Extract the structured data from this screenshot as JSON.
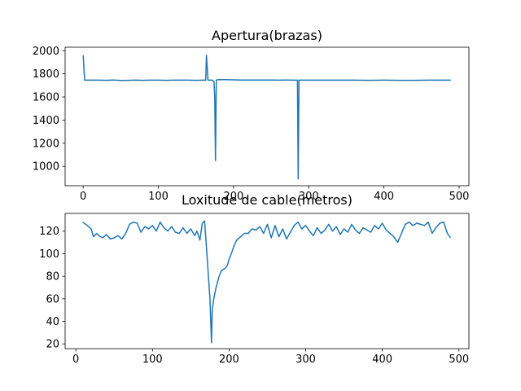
{
  "chart_data": [
    {
      "type": "line",
      "title": "Apertura(brazas)",
      "xlabel": "",
      "ylabel": "",
      "xlim": [
        -24,
        513
      ],
      "ylim": [
        832,
        2030
      ],
      "x_ticks": [
        0,
        100,
        200,
        300,
        400,
        500
      ],
      "y_ticks": [
        1000,
        1200,
        1400,
        1600,
        1800,
        2000
      ],
      "grid": false,
      "color": "#1f77b4",
      "series": [
        {
          "x": [
            0,
            2,
            10,
            20,
            30,
            40,
            50,
            60,
            70,
            80,
            90,
            100,
            110,
            120,
            130,
            140,
            150,
            160,
            163,
            164,
            166,
            168,
            172,
            174,
            175,
            176,
            177,
            180,
            190,
            200,
            210,
            220,
            230,
            240,
            250,
            260,
            270,
            280,
            284,
            285,
            286,
            287,
            288,
            290,
            300,
            320,
            340,
            360,
            380,
            400,
            420,
            440,
            460,
            480,
            489
          ],
          "y": [
            1960,
            1745,
            1745,
            1745,
            1744,
            1746,
            1743,
            1744,
            1745,
            1744,
            1745,
            1745,
            1744,
            1745,
            1745,
            1745,
            1744,
            1745,
            1745,
            1960,
            1745,
            1745,
            1745,
            1730,
            1600,
            1050,
            1745,
            1750,
            1750,
            1748,
            1747,
            1746,
            1746,
            1746,
            1746,
            1745,
            1746,
            1745,
            1745,
            1745,
            890,
            1745,
            1745,
            1745,
            1745,
            1745,
            1745,
            1745,
            1744,
            1745,
            1744,
            1744,
            1745,
            1745,
            1745
          ]
        }
      ]
    },
    {
      "type": "line",
      "title": "Loxitude de cable(metros)",
      "xlabel": "",
      "ylabel": "",
      "xlim": [
        -14,
        513
      ],
      "ylim": [
        15.8,
        135.7
      ],
      "x_ticks": [
        0,
        100,
        200,
        300,
        400,
        500
      ],
      "y_ticks": [
        20,
        40,
        60,
        80,
        100,
        120
      ],
      "grid": false,
      "color": "#1f77b4",
      "series": [
        {
          "x": [
            9,
            15,
            20,
            23,
            27,
            30,
            35,
            40,
            45,
            50,
            55,
            60,
            65,
            70,
            75,
            80,
            85,
            90,
            95,
            100,
            105,
            110,
            115,
            120,
            125,
            130,
            135,
            140,
            145,
            150,
            155,
            158,
            162,
            165,
            168,
            170,
            172,
            175,
            177,
            178,
            180,
            183,
            187,
            190,
            195,
            198,
            200,
            203,
            207,
            210,
            215,
            220,
            225,
            230,
            235,
            240,
            245,
            250,
            255,
            260,
            265,
            270,
            275,
            280,
            285,
            290,
            295,
            300,
            305,
            310,
            315,
            320,
            325,
            330,
            335,
            340,
            345,
            350,
            355,
            360,
            365,
            370,
            375,
            380,
            385,
            390,
            395,
            400,
            405,
            410,
            415,
            418,
            420,
            425,
            430,
            435,
            440,
            445,
            450,
            455,
            460,
            465,
            470,
            475,
            480,
            485,
            489
          ],
          "y": [
            128,
            125,
            122,
            115,
            118,
            116,
            114,
            117,
            113,
            114,
            116,
            113,
            118,
            126,
            128,
            127,
            119,
            124,
            122,
            125,
            120,
            128,
            123,
            120,
            124,
            119,
            118,
            123,
            118,
            122,
            116,
            120,
            112,
            127,
            129,
            110,
            90,
            60,
            21,
            50,
            60,
            70,
            80,
            85,
            87,
            90,
            95,
            100,
            108,
            112,
            115,
            118,
            118,
            122,
            121,
            124,
            118,
            126,
            114,
            125,
            115,
            122,
            113,
            119,
            125,
            128,
            122,
            125,
            120,
            116,
            123,
            118,
            121,
            126,
            120,
            124,
            117,
            122,
            119,
            126,
            121,
            118,
            123,
            121,
            119,
            125,
            122,
            127,
            121,
            118,
            115,
            112,
            110,
            118,
            126,
            128,
            125,
            127,
            126,
            125,
            128,
            118,
            123,
            127,
            128,
            118,
            114
          ]
        }
      ]
    }
  ]
}
